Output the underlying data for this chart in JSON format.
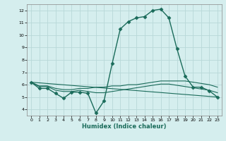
{
  "xlabel": "Humidex (Indice chaleur)",
  "background_color": "#d5eeee",
  "grid_color": "#b8d8d8",
  "line_color": "#1a6b5a",
  "xlim": [
    -0.5,
    23.5
  ],
  "ylim": [
    3.5,
    12.5
  ],
  "xticks": [
    0,
    1,
    2,
    3,
    4,
    5,
    6,
    7,
    8,
    9,
    10,
    11,
    12,
    13,
    14,
    15,
    16,
    17,
    18,
    19,
    20,
    21,
    22,
    23
  ],
  "yticks": [
    4,
    5,
    6,
    7,
    8,
    9,
    10,
    11,
    12
  ],
  "series": [
    {
      "x": [
        0,
        1,
        2,
        3,
        4,
        5,
        6,
        7,
        8,
        9,
        10,
        11,
        12,
        13,
        14,
        15,
        16,
        17,
        18,
        19,
        20,
        21,
        22,
        23
      ],
      "y": [
        6.2,
        5.7,
        5.7,
        5.3,
        4.9,
        5.4,
        5.4,
        5.3,
        3.7,
        4.7,
        7.7,
        10.5,
        11.1,
        11.4,
        11.5,
        12.0,
        12.1,
        11.4,
        8.9,
        6.7,
        5.8,
        5.8,
        5.5,
        5.0
      ],
      "marker": "D",
      "markersize": 2.5,
      "linewidth": 1.0,
      "linestyle": "-"
    },
    {
      "x": [
        0,
        1,
        2,
        3,
        4,
        5,
        6,
        7,
        8,
        9,
        10,
        11,
        12,
        13,
        14,
        15,
        16,
        17,
        18,
        19,
        20,
        21,
        22,
        23
      ],
      "y": [
        6.2,
        5.9,
        5.9,
        5.7,
        5.6,
        5.6,
        5.7,
        5.7,
        5.8,
        5.8,
        5.9,
        5.9,
        6.0,
        6.0,
        6.1,
        6.2,
        6.3,
        6.3,
        6.3,
        6.3,
        6.2,
        6.1,
        6.0,
        5.8
      ],
      "marker": null,
      "markersize": 0,
      "linewidth": 0.8,
      "linestyle": "-"
    },
    {
      "x": [
        0,
        1,
        2,
        3,
        4,
        5,
        6,
        7,
        8,
        9,
        10,
        11,
        12,
        13,
        14,
        15,
        16,
        17,
        18,
        19,
        20,
        21,
        22,
        23
      ],
      "y": [
        6.2,
        5.85,
        5.85,
        5.55,
        5.45,
        5.45,
        5.55,
        5.45,
        5.35,
        5.35,
        5.45,
        5.55,
        5.65,
        5.75,
        5.85,
        5.95,
        6.05,
        6.05,
        5.95,
        5.85,
        5.75,
        5.65,
        5.55,
        5.35
      ],
      "marker": null,
      "markersize": 0,
      "linewidth": 0.8,
      "linestyle": "-"
    },
    {
      "x": [
        0,
        23
      ],
      "y": [
        6.2,
        5.0
      ],
      "marker": null,
      "markersize": 0,
      "linewidth": 0.8,
      "linestyle": "-"
    }
  ]
}
